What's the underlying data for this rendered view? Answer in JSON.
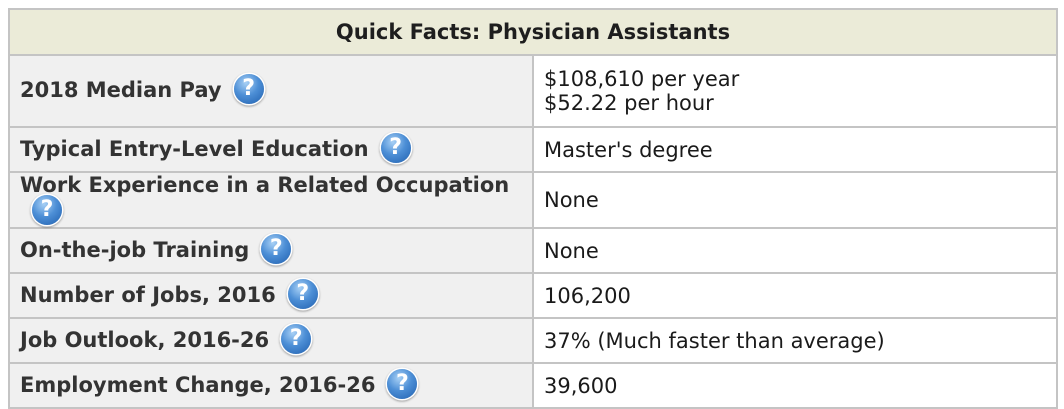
{
  "header": {
    "title": "Quick Facts: Physician Assistants"
  },
  "rows": [
    {
      "label": "2018 Median Pay",
      "values": [
        "$108,610 per year",
        "$52.22 per hour"
      ]
    },
    {
      "label": "Typical Entry-Level Education",
      "values": [
        "Master's degree"
      ]
    },
    {
      "label": "Work Experience in a Related Occupation",
      "values": [
        "None"
      ]
    },
    {
      "label": "On-the-job Training",
      "values": [
        "None"
      ]
    },
    {
      "label": "Number of Jobs, 2016",
      "values": [
        "106,200"
      ]
    },
    {
      "label": "Job Outlook, 2016-26",
      "values": [
        "37% (Much faster than average)"
      ]
    },
    {
      "label": "Employment Change, 2016-26",
      "values": [
        "39,600"
      ]
    }
  ],
  "help_icon": {
    "icon": "question-mark-icon",
    "glyph": "?",
    "color": "#3b7fd0"
  },
  "colors": {
    "header_bg": "#ebebd8",
    "label_bg": "#f0f0f0",
    "border": "#c4c4c4"
  }
}
